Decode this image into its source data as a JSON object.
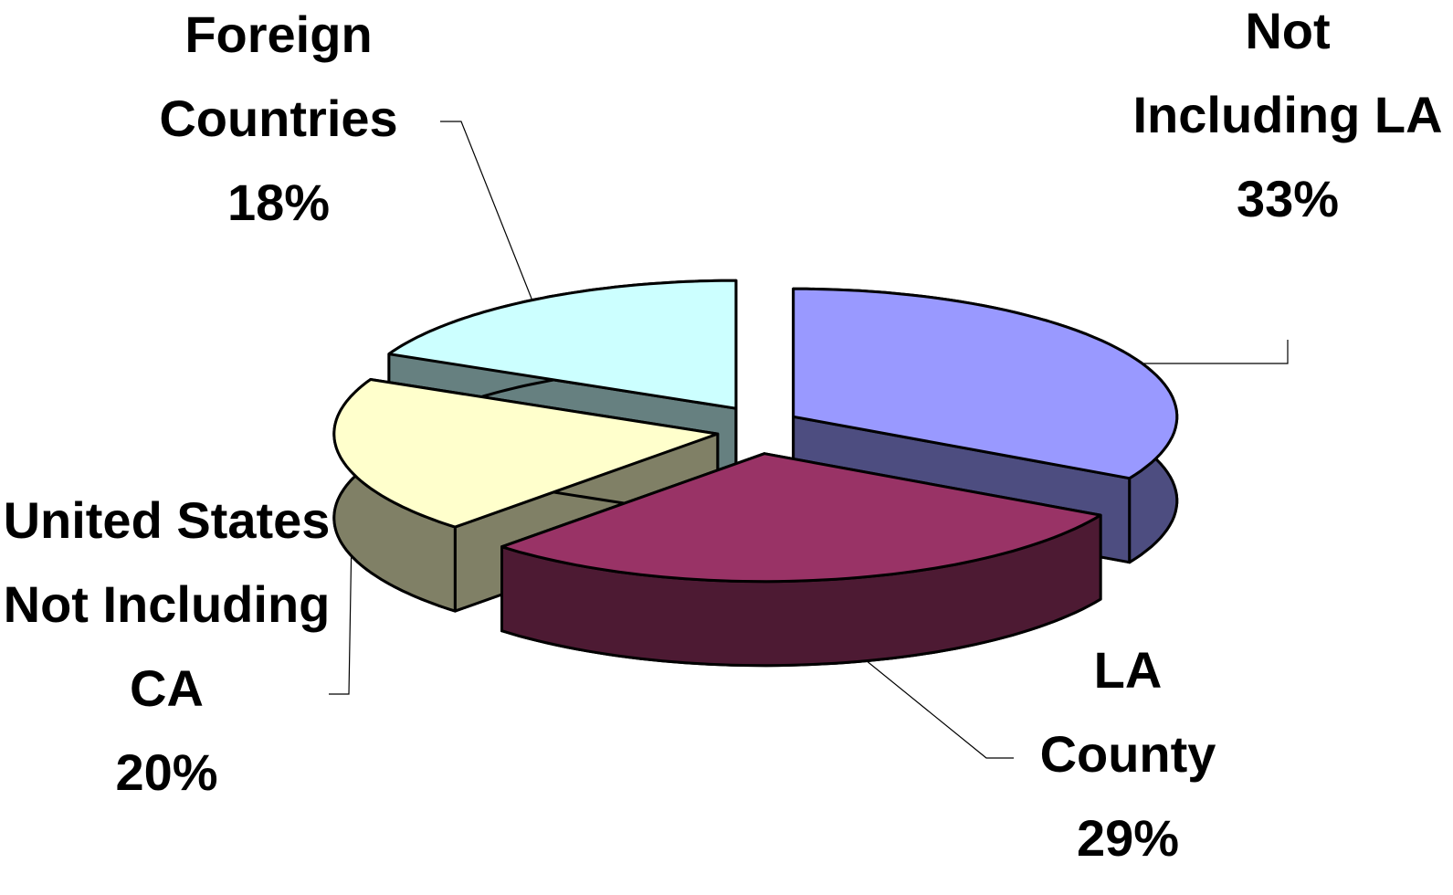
{
  "chart_data": {
    "type": "pie3d",
    "categories": [
      "Not Including LA",
      "LA County",
      "United States Not Including CA",
      "Foreign Countries"
    ],
    "values": [
      33,
      29,
      20,
      18
    ],
    "value_labels": [
      "33%",
      "29%",
      "20%",
      "18%"
    ],
    "colors": [
      "#9999ff",
      "#993366",
      "#ffffcc",
      "#ccffff"
    ]
  }
}
